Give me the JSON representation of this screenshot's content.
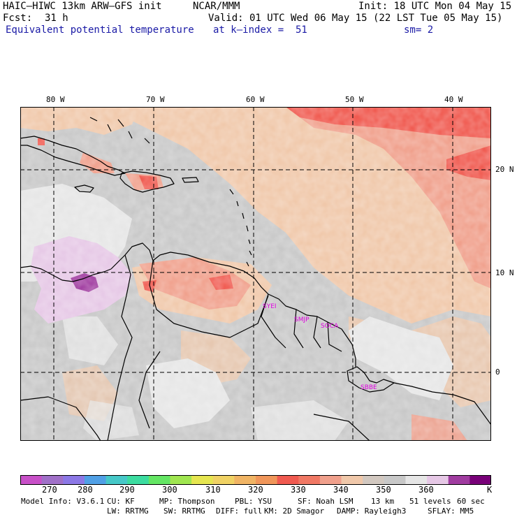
{
  "header": {
    "model": "HAIC–HIWC 13km ARW–GFS init",
    "center": "NCAR/MMM",
    "init": "Init: 18 UTC Mon 04 May 15",
    "fcst_label": "Fcst:",
    "fcst_value": "31 h",
    "valid": "Valid: 01 UTC Wed 06 May 15 (22 LST Tue 05 May 15)",
    "field": "Equivalent potential temperature",
    "level": "at k–index =  51",
    "smooth": "sm= 2"
  },
  "map": {
    "lon_labels": [
      "80 W",
      "70 W",
      "60 W",
      "50 W",
      "40 W"
    ],
    "lat_labels": [
      "20 N",
      "10 N",
      "0"
    ],
    "stations": [
      "SYEI",
      "SMJP",
      "SOCA",
      "SBBE"
    ],
    "station_color": "#e000e0"
  },
  "colorbar": {
    "colors": [
      "#c850c8",
      "#a070c8",
      "#8c78e6",
      "#50a0e6",
      "#46c8c8",
      "#3cdca0",
      "#64e664",
      "#a0e650",
      "#e6e650",
      "#f0d264",
      "#f0b464",
      "#f0965a",
      "#f05a50",
      "#f07864",
      "#f0a08c",
      "#f0c8aa",
      "#d2c8c0",
      "#c8c8c8",
      "#e6e6e6",
      "#e6c8e6",
      "#a03ca0",
      "#780078"
    ],
    "labels": [
      "270",
      "280",
      "290",
      "300",
      "310",
      "320",
      "330",
      "340",
      "350",
      "360"
    ],
    "unit": "K"
  },
  "footer": {
    "line1": [
      "Model Info: V3.6.1",
      "CU: KF",
      "MP: Thompson",
      "PBL: YSU",
      "SF: Noah LSM",
      "13 km",
      "51 levels",
      "60 sec"
    ],
    "line2": [
      "LW: RRTMG",
      "SW: RRTMG",
      "DIFF: full",
      "KM: 2D Smagor",
      "DAMP: Rayleigh3",
      "SFLAY: MM5"
    ]
  }
}
